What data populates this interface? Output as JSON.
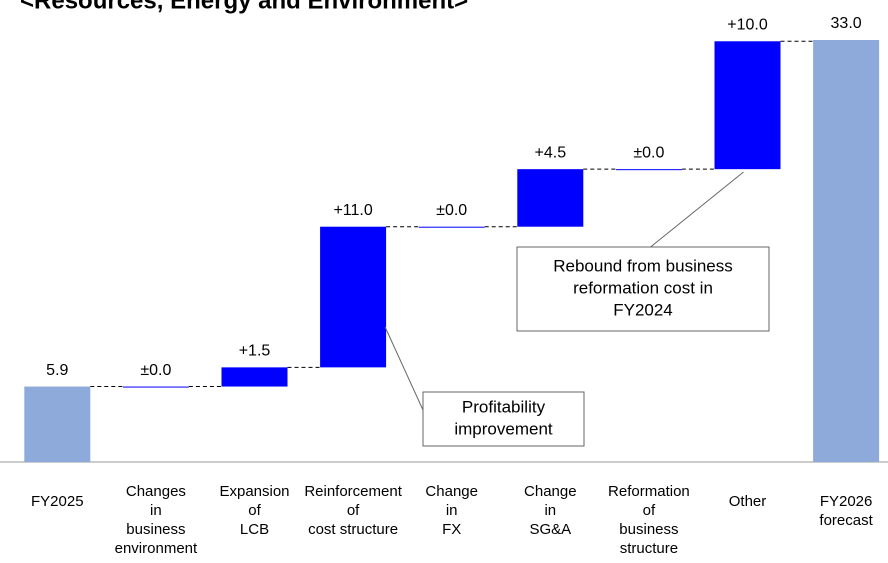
{
  "chart_data": {
    "type": "waterfall",
    "title": "<Resources, Energy and Environment>",
    "categories": [
      [
        "FY2025"
      ],
      [
        "Changes",
        "in",
        "business",
        "environment"
      ],
      [
        "Expansion",
        "of",
        "LCB"
      ],
      [
        "Reinforcement",
        "of",
        "cost structure"
      ],
      [
        "Change",
        "in",
        "FX"
      ],
      [
        "Change",
        "in",
        "SG&A"
      ],
      [
        "Reformation",
        "of",
        "business",
        "structure"
      ],
      [
        "Other"
      ],
      [
        "FY2026",
        "forecast"
      ]
    ],
    "values": [
      5.9,
      0.0,
      1.5,
      11.0,
      0.0,
      4.5,
      0.0,
      10.0,
      33.0
    ],
    "value_labels": [
      "5.9",
      "±0.0",
      "+1.5",
      "+11.0",
      "±0.0",
      "+4.5",
      "±0.0",
      "+10.0",
      "33.0"
    ],
    "kinds": [
      "total",
      "delta",
      "delta",
      "delta",
      "delta",
      "delta",
      "delta",
      "delta",
      "total"
    ],
    "colors": {
      "total": "#8eaadb",
      "delta": "#0000ff"
    },
    "annotations": [
      [
        "Profitability",
        "improvement"
      ],
      [
        "Rebound from business",
        "reformation cost in",
        "FY2024"
      ]
    ]
  }
}
